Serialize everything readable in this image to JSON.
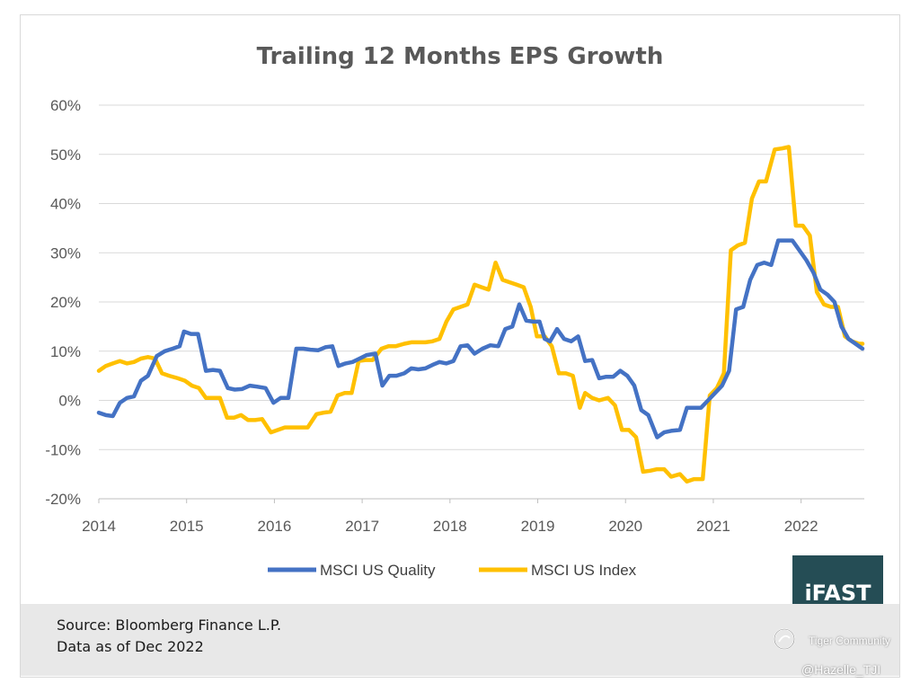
{
  "title": "Trailing 12 Months EPS Growth",
  "footer": {
    "source": "Source: Bloomberg Finance L.P.",
    "asof": "Data as of Dec 2022"
  },
  "logo": {
    "text": "iFAST"
  },
  "watermark": {
    "community": "Tiger Community",
    "handle": "@Hazelle_TJI"
  },
  "colors": {
    "quality": "#4472c4",
    "index": "#ffc000",
    "grid": "#d9d9d9",
    "axis": "#bfbfbf",
    "logo_bg": "#254d55"
  },
  "chart_data": {
    "type": "line",
    "title": "Trailing 12 Months EPS Growth",
    "xlabel": "",
    "ylabel": "",
    "x_range": [
      2014.0,
      2022.72
    ],
    "ylim": [
      -20,
      60
    ],
    "y_ticks": [
      60,
      50,
      40,
      30,
      20,
      10,
      0,
      -10,
      -20
    ],
    "y_tick_labels": [
      "60%",
      "50%",
      "40%",
      "30%",
      "20%",
      "10%",
      "0%",
      "-10%",
      "-20%"
    ],
    "x_ticks": [
      2014,
      2015,
      2016,
      2017,
      2018,
      2019,
      2020,
      2021,
      2022
    ],
    "x_tick_labels": [
      "2014",
      "2015",
      "2016",
      "2017",
      "2018",
      "2019",
      "2020",
      "2021",
      "2022"
    ],
    "legend_position": "bottom",
    "series": [
      {
        "name": "MSCI US Quality",
        "color": "#4472c4",
        "points": [
          [
            2014.0,
            -2.5
          ],
          [
            2014.08,
            -3.0
          ],
          [
            2014.16,
            -3.2
          ],
          [
            2014.24,
            -0.5
          ],
          [
            2014.32,
            0.5
          ],
          [
            2014.4,
            0.8
          ],
          [
            2014.48,
            4.0
          ],
          [
            2014.56,
            5.0
          ],
          [
            2014.66,
            9.0
          ],
          [
            2014.75,
            10.0
          ],
          [
            2014.84,
            10.5
          ],
          [
            2014.92,
            11.0
          ],
          [
            2014.97,
            14.0
          ],
          [
            2015.05,
            13.5
          ],
          [
            2015.13,
            13.5
          ],
          [
            2015.22,
            6.0
          ],
          [
            2015.3,
            6.2
          ],
          [
            2015.38,
            6.0
          ],
          [
            2015.47,
            2.5
          ],
          [
            2015.55,
            2.2
          ],
          [
            2015.63,
            2.3
          ],
          [
            2015.72,
            3.0
          ],
          [
            2015.8,
            2.8
          ],
          [
            2015.9,
            2.5
          ],
          [
            2015.99,
            -0.5
          ],
          [
            2016.07,
            0.5
          ],
          [
            2016.16,
            0.5
          ],
          [
            2016.25,
            10.5
          ],
          [
            2016.33,
            10.5
          ],
          [
            2016.41,
            10.3
          ],
          [
            2016.5,
            10.2
          ],
          [
            2016.58,
            10.8
          ],
          [
            2016.66,
            11.0
          ],
          [
            2016.73,
            7.0
          ],
          [
            2016.81,
            7.5
          ],
          [
            2016.89,
            7.8
          ],
          [
            2016.97,
            8.5
          ],
          [
            2017.05,
            9.2
          ],
          [
            2017.15,
            9.5
          ],
          [
            2017.23,
            3.0
          ],
          [
            2017.31,
            5.0
          ],
          [
            2017.39,
            5.0
          ],
          [
            2017.48,
            5.5
          ],
          [
            2017.56,
            6.5
          ],
          [
            2017.64,
            6.3
          ],
          [
            2017.72,
            6.5
          ],
          [
            2017.8,
            7.2
          ],
          [
            2017.88,
            7.8
          ],
          [
            2017.96,
            7.5
          ],
          [
            2018.04,
            8.0
          ],
          [
            2018.12,
            11.0
          ],
          [
            2018.2,
            11.2
          ],
          [
            2018.28,
            9.5
          ],
          [
            2018.37,
            10.5
          ],
          [
            2018.46,
            11.2
          ],
          [
            2018.55,
            11.0
          ],
          [
            2018.63,
            14.5
          ],
          [
            2018.71,
            15.0
          ],
          [
            2018.79,
            19.5
          ],
          [
            2018.87,
            16.2
          ],
          [
            2018.95,
            16.0
          ],
          [
            2019.02,
            16.0
          ],
          [
            2019.08,
            12.5
          ],
          [
            2019.14,
            12.0
          ],
          [
            2019.22,
            14.5
          ],
          [
            2019.3,
            12.5
          ],
          [
            2019.38,
            12.0
          ],
          [
            2019.46,
            13.0
          ],
          [
            2019.54,
            8.0
          ],
          [
            2019.62,
            8.2
          ],
          [
            2019.7,
            4.5
          ],
          [
            2019.78,
            4.8
          ],
          [
            2019.86,
            4.8
          ],
          [
            2019.94,
            6.0
          ],
          [
            2020.02,
            5.0
          ],
          [
            2020.1,
            3.0
          ],
          [
            2020.18,
            -2.0
          ],
          [
            2020.26,
            -3.0
          ],
          [
            2020.36,
            -7.5
          ],
          [
            2020.44,
            -6.5
          ],
          [
            2020.52,
            -6.2
          ],
          [
            2020.62,
            -6.0
          ],
          [
            2020.7,
            -1.5
          ],
          [
            2020.78,
            -1.5
          ],
          [
            2020.86,
            -1.5
          ],
          [
            2020.94,
            0.0
          ],
          [
            2021.02,
            1.5
          ],
          [
            2021.1,
            3.0
          ],
          [
            2021.18,
            6.0
          ],
          [
            2021.26,
            18.5
          ],
          [
            2021.34,
            19.0
          ],
          [
            2021.42,
            24.5
          ],
          [
            2021.5,
            27.5
          ],
          [
            2021.58,
            28.0
          ],
          [
            2021.66,
            27.5
          ],
          [
            2021.74,
            32.5
          ],
          [
            2021.82,
            32.5
          ],
          [
            2021.9,
            32.5
          ],
          [
            2021.98,
            30.5
          ],
          [
            2022.06,
            28.5
          ],
          [
            2022.14,
            26.0
          ],
          [
            2022.22,
            22.5
          ],
          [
            2022.3,
            21.5
          ],
          [
            2022.38,
            20.0
          ],
          [
            2022.46,
            15.0
          ],
          [
            2022.54,
            12.5
          ],
          [
            2022.62,
            11.5
          ],
          [
            2022.7,
            10.5
          ]
        ]
      },
      {
        "name": "MSCI US Index",
        "color": "#ffc000",
        "points": [
          [
            2014.0,
            6.0
          ],
          [
            2014.08,
            7.0
          ],
          [
            2014.16,
            7.5
          ],
          [
            2014.24,
            8.0
          ],
          [
            2014.32,
            7.5
          ],
          [
            2014.4,
            7.8
          ],
          [
            2014.48,
            8.5
          ],
          [
            2014.56,
            8.8
          ],
          [
            2014.64,
            8.5
          ],
          [
            2014.72,
            5.5
          ],
          [
            2014.8,
            5.0
          ],
          [
            2014.9,
            4.5
          ],
          [
            2014.98,
            4.0
          ],
          [
            2015.06,
            3.0
          ],
          [
            2015.14,
            2.5
          ],
          [
            2015.22,
            0.5
          ],
          [
            2015.3,
            0.5
          ],
          [
            2015.38,
            0.5
          ],
          [
            2015.46,
            -3.5
          ],
          [
            2015.54,
            -3.5
          ],
          [
            2015.62,
            -3.0
          ],
          [
            2015.7,
            -4.0
          ],
          [
            2015.78,
            -4.0
          ],
          [
            2015.86,
            -3.8
          ],
          [
            2015.96,
            -6.5
          ],
          [
            2016.04,
            -6.0
          ],
          [
            2016.12,
            -5.5
          ],
          [
            2016.2,
            -5.5
          ],
          [
            2016.28,
            -5.5
          ],
          [
            2016.38,
            -5.5
          ],
          [
            2016.48,
            -2.8
          ],
          [
            2016.56,
            -2.5
          ],
          [
            2016.64,
            -2.3
          ],
          [
            2016.72,
            1.0
          ],
          [
            2016.8,
            1.5
          ],
          [
            2016.88,
            1.5
          ],
          [
            2016.96,
            8.0
          ],
          [
            2017.04,
            8.2
          ],
          [
            2017.12,
            8.2
          ],
          [
            2017.22,
            10.5
          ],
          [
            2017.3,
            11.0
          ],
          [
            2017.38,
            11.0
          ],
          [
            2017.48,
            11.5
          ],
          [
            2017.56,
            11.8
          ],
          [
            2017.64,
            11.8
          ],
          [
            2017.72,
            11.8
          ],
          [
            2017.8,
            12.0
          ],
          [
            2017.88,
            12.5
          ],
          [
            2017.96,
            16.0
          ],
          [
            2018.04,
            18.5
          ],
          [
            2018.12,
            19.0
          ],
          [
            2018.2,
            19.5
          ],
          [
            2018.28,
            23.5
          ],
          [
            2018.36,
            23.0
          ],
          [
            2018.44,
            22.5
          ],
          [
            2018.52,
            28.0
          ],
          [
            2018.6,
            24.5
          ],
          [
            2018.68,
            24.0
          ],
          [
            2018.76,
            23.5
          ],
          [
            2018.84,
            23.0
          ],
          [
            2018.92,
            19.0
          ],
          [
            2018.99,
            13.0
          ],
          [
            2019.08,
            13.0
          ],
          [
            2019.16,
            11.0
          ],
          [
            2019.24,
            5.5
          ],
          [
            2019.32,
            5.5
          ],
          [
            2019.4,
            5.0
          ],
          [
            2019.48,
            -1.5
          ],
          [
            2019.54,
            1.5
          ],
          [
            2019.62,
            0.5
          ],
          [
            2019.7,
            0.0
          ],
          [
            2019.8,
            0.5
          ],
          [
            2019.88,
            -1.0
          ],
          [
            2019.96,
            -6.0
          ],
          [
            2020.04,
            -6.0
          ],
          [
            2020.12,
            -7.5
          ],
          [
            2020.2,
            -14.5
          ],
          [
            2020.28,
            -14.3
          ],
          [
            2020.36,
            -14.0
          ],
          [
            2020.44,
            -14.0
          ],
          [
            2020.52,
            -15.5
          ],
          [
            2020.62,
            -15.0
          ],
          [
            2020.7,
            -16.5
          ],
          [
            2020.78,
            -16.0
          ],
          [
            2020.88,
            -16.0
          ],
          [
            2020.96,
            1.0
          ],
          [
            2021.04,
            2.5
          ],
          [
            2021.12,
            5.5
          ],
          [
            2021.2,
            30.5
          ],
          [
            2021.28,
            31.5
          ],
          [
            2021.36,
            32.0
          ],
          [
            2021.44,
            41.0
          ],
          [
            2021.52,
            44.5
          ],
          [
            2021.6,
            44.5
          ],
          [
            2021.7,
            51.0
          ],
          [
            2021.78,
            51.2
          ],
          [
            2021.86,
            51.5
          ],
          [
            2021.94,
            35.5
          ],
          [
            2022.02,
            35.5
          ],
          [
            2022.1,
            33.5
          ],
          [
            2022.18,
            22.0
          ],
          [
            2022.26,
            19.5
          ],
          [
            2022.34,
            19.0
          ],
          [
            2022.42,
            19.0
          ],
          [
            2022.5,
            13.0
          ],
          [
            2022.58,
            12.0
          ],
          [
            2022.66,
            11.5
          ],
          [
            2022.7,
            11.5
          ]
        ]
      }
    ]
  }
}
